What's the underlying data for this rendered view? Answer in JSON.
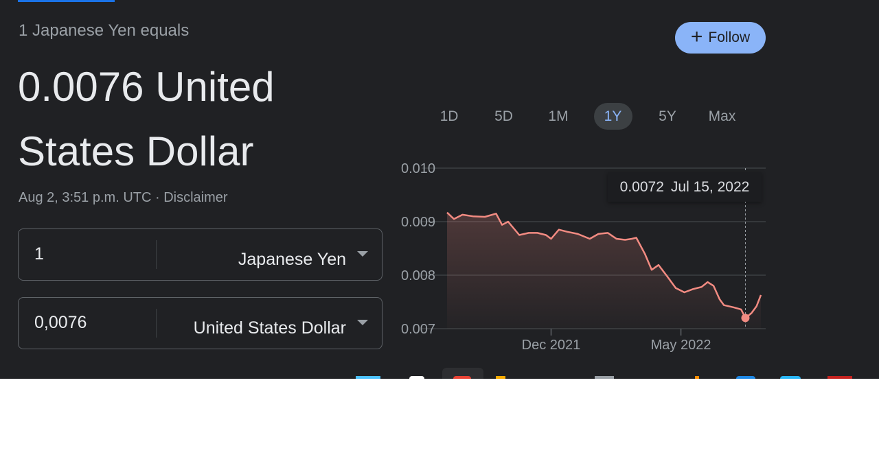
{
  "header": {
    "subtitle": "1 Japanese Yen equals",
    "result_line1": "0.0076 United",
    "result_line2": "States Dollar",
    "follow_label": "Follow",
    "timestamp": "Aug 2, 3:51 p.m. UTC",
    "separator": "·",
    "disclaimer": "Disclaimer"
  },
  "converter": {
    "from": {
      "value": "1",
      "currency": "Japanese Yen"
    },
    "to": {
      "value": "0,0076",
      "currency": "United States Dollar"
    }
  },
  "ranges": [
    {
      "label": "1D"
    },
    {
      "label": "5D"
    },
    {
      "label": "1M"
    },
    {
      "label": "1Y",
      "active": true
    },
    {
      "label": "5Y"
    },
    {
      "label": "Max"
    }
  ],
  "tooltip": {
    "value": "0.0072",
    "date": "Jul 15, 2022"
  },
  "colors": {
    "line": "#f28b82",
    "accent": "#8ab4f8",
    "background": "#202124"
  },
  "chart_data": {
    "type": "area",
    "ylim": [
      0.007,
      0.01
    ],
    "yticks": [
      "0.010",
      "0.009",
      "0.008",
      "0.007"
    ],
    "xticks": [
      "Dec 2021",
      "May 2022"
    ],
    "grid": true,
    "x": [
      "2021-08-02",
      "2021-08-10",
      "2021-08-20",
      "2021-09-01",
      "2021-09-15",
      "2021-09-28",
      "2021-10-05",
      "2021-10-12",
      "2021-10-25",
      "2021-11-05",
      "2021-11-15",
      "2021-11-25",
      "2021-12-01",
      "2021-12-10",
      "2021-12-20",
      "2022-01-01",
      "2022-01-15",
      "2022-01-25",
      "2022-02-05",
      "2022-02-15",
      "2022-02-25",
      "2022-03-05",
      "2022-03-10",
      "2022-03-20",
      "2022-03-28",
      "2022-04-05",
      "2022-04-15",
      "2022-04-25",
      "2022-05-05",
      "2022-05-15",
      "2022-05-25",
      "2022-06-01",
      "2022-06-08",
      "2022-06-15",
      "2022-06-20",
      "2022-07-01",
      "2022-07-10",
      "2022-07-15",
      "2022-07-22",
      "2022-07-28",
      "2022-08-02"
    ],
    "values": [
      0.00917,
      0.00905,
      0.00913,
      0.0091,
      0.00909,
      0.00915,
      0.00894,
      0.009,
      0.00875,
      0.00879,
      0.00879,
      0.00875,
      0.00868,
      0.00885,
      0.00881,
      0.00877,
      0.00868,
      0.00877,
      0.00879,
      0.00868,
      0.00866,
      0.00868,
      0.0087,
      0.0084,
      0.0081,
      0.00819,
      0.00798,
      0.00776,
      0.00768,
      0.00774,
      0.00778,
      0.00787,
      0.0078,
      0.00755,
      0.00744,
      0.0074,
      0.00736,
      0.0072,
      0.00729,
      0.00742,
      0.00763
    ],
    "highlight": {
      "x": "2022-07-15",
      "value": 0.0072
    }
  }
}
